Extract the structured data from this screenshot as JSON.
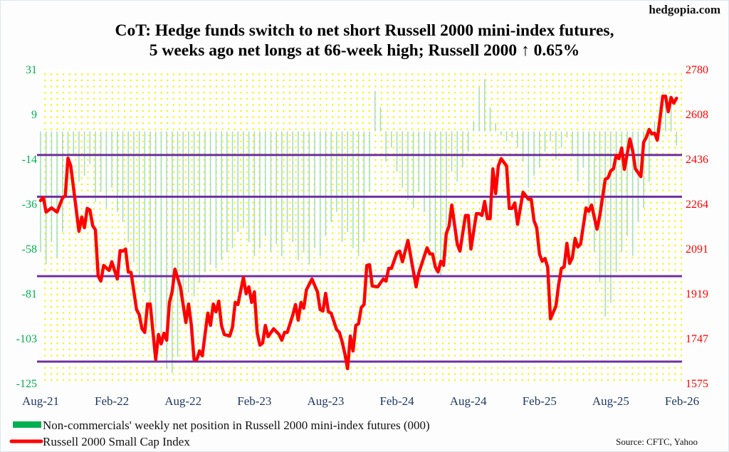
{
  "site": "hedgopia.com",
  "source": "Source: CFTC, Yahoo",
  "colors": {
    "bars": "#a6dfbd",
    "line": "#ff0000",
    "levels": "#7030a0",
    "left_axis": "#00b050",
    "right_axis": "#ff0000",
    "x_axis": "#1f3864"
  },
  "chart_data": {
    "type": "bar+line",
    "title": [
      "CoT: Hedge funds switch to net short Russell 2000 mini-index futures,",
      "5 weeks ago net longs at 66-week high; Russell 2000 ↑ 0.65%"
    ],
    "x_unit": "weeks since Aug-21",
    "xlim": [
      0,
      234
    ],
    "x_tick_labels": [
      "Aug-21",
      "Feb-22",
      "Aug-22",
      "Feb-23",
      "Aug-23",
      "Feb-24",
      "Aug-24",
      "Feb-25",
      "Aug-25",
      "Feb-26"
    ],
    "x_tick_weeks": [
      0,
      26,
      52,
      78,
      104,
      130,
      156,
      182,
      208,
      234
    ],
    "left_axis": {
      "ylim": [
        -125,
        31
      ],
      "tick_labels": [
        "31",
        "9",
        "-14",
        "-36",
        "-58",
        "-81",
        "-103",
        "-125"
      ]
    },
    "right_axis": {
      "ylim": [
        1575,
        2780
      ],
      "tick_labels": [
        "2780",
        "2608",
        "2436",
        "2264",
        "2091",
        "1919",
        "1747",
        "1575"
      ]
    },
    "legend": [
      "Non-commercials' weekly net position in Russell 2000 mini-index futures (000)",
      "Russell 2000 Small Cap Index"
    ],
    "legend_placement": "bottom-left",
    "horizontal_levels": [
      2450,
      2290,
      1985,
      1657
    ],
    "series": [
      {
        "name": "Non-commercials' weekly net position in Russell 2000 mini-index futures (000)",
        "axis": "left",
        "type": "bar",
        "week_step": 2,
        "values": [
          -60,
          -66,
          -55,
          -63,
          -50,
          -20,
          -12,
          -25,
          -22,
          -16,
          -35,
          -30,
          -38,
          -28,
          -40,
          -45,
          -55,
          -65,
          -72,
          -80,
          -88,
          -98,
          -105,
          -118,
          -120,
          -112,
          -85,
          -80,
          -82,
          -75,
          -70,
          -66,
          -68,
          -64,
          -60,
          -58,
          -50,
          -48,
          -55,
          -62,
          -58,
          -52,
          -60,
          -56,
          -62,
          -50,
          -55,
          -64,
          -60,
          -66,
          -58,
          -62,
          -52,
          -45,
          -40,
          -55,
          -50,
          -58,
          -62,
          -55,
          -30,
          20,
          12,
          -15,
          -8,
          -20,
          -28,
          -34,
          -38,
          -30,
          -40,
          -55,
          -70,
          -72,
          -62,
          -20,
          -25,
          -18,
          -10,
          5,
          22,
          26,
          12,
          4,
          -2,
          -5,
          -3,
          -8,
          -15,
          -28,
          -22,
          -18,
          -10,
          -5,
          -14,
          -8,
          -3,
          -12,
          -25,
          -18,
          -42,
          -60,
          -75,
          -92,
          -85,
          -70,
          -60,
          -52,
          -62,
          -45,
          -38,
          -25,
          5,
          12,
          18,
          15,
          -7
        ]
      },
      {
        "name": "Russell 2000 Small Cap Index",
        "axis": "right",
        "type": "line",
        "points": [
          [
            0,
            2275
          ],
          [
            1,
            2288
          ],
          [
            2,
            2231
          ],
          [
            4,
            2247
          ],
          [
            6,
            2231
          ],
          [
            8,
            2285
          ],
          [
            9,
            2294
          ],
          [
            10,
            2438
          ],
          [
            11,
            2408
          ],
          [
            14,
            2157
          ],
          [
            15,
            2212
          ],
          [
            16,
            2171
          ],
          [
            17,
            2245
          ],
          [
            18,
            2239
          ],
          [
            19,
            2179
          ],
          [
            20,
            2163
          ],
          [
            21,
            1985
          ],
          [
            22,
            1966
          ],
          [
            23,
            2026
          ],
          [
            25,
            2007
          ],
          [
            26,
            2040
          ],
          [
            28,
            1974
          ],
          [
            29,
            2083
          ],
          [
            30,
            2081
          ],
          [
            31,
            2089
          ],
          [
            32,
            2001
          ],
          [
            33,
            1999
          ],
          [
            35,
            1857
          ],
          [
            36,
            1837
          ],
          [
            37,
            1783
          ],
          [
            38,
            1769
          ],
          [
            39,
            1878
          ],
          [
            40,
            1878
          ],
          [
            42,
            1665
          ],
          [
            43,
            1761
          ],
          [
            44,
            1725
          ],
          [
            45,
            1766
          ],
          [
            46,
            1739
          ],
          [
            47,
            1884
          ],
          [
            48,
            1925
          ],
          [
            49,
            2012
          ],
          [
            51,
            1944
          ],
          [
            53,
            1807
          ],
          [
            54,
            1878
          ],
          [
            55,
            1796
          ],
          [
            56,
            1665
          ],
          [
            57,
            1665
          ],
          [
            58,
            1698
          ],
          [
            59,
            1679
          ],
          [
            60,
            1761
          ],
          [
            61,
            1843
          ],
          [
            62,
            1796
          ],
          [
            63,
            1878
          ],
          [
            64,
            1848
          ],
          [
            65,
            1889
          ],
          [
            66,
            1796
          ],
          [
            67,
            1761
          ],
          [
            69,
            1755
          ],
          [
            70,
            1788
          ],
          [
            71,
            1884
          ],
          [
            72,
            1876
          ],
          [
            74,
            1980
          ],
          [
            75,
            1917
          ],
          [
            76,
            1944
          ],
          [
            77,
            1884
          ],
          [
            78,
            1925
          ],
          [
            79,
            1769
          ],
          [
            80,
            1720
          ],
          [
            81,
            1728
          ],
          [
            82,
            1796
          ],
          [
            83,
            1753
          ],
          [
            85,
            1783
          ],
          [
            87,
            1761
          ],
          [
            88,
            1739
          ],
          [
            89,
            1769
          ],
          [
            90,
            1769
          ],
          [
            92,
            1835
          ],
          [
            93,
            1876
          ],
          [
            94,
            1816
          ],
          [
            95,
            1884
          ],
          [
            96,
            1862
          ],
          [
            97,
            1933
          ],
          [
            99,
            1974
          ],
          [
            101,
            1925
          ],
          [
            102,
            1857
          ],
          [
            103,
            1851
          ],
          [
            104,
            1919
          ],
          [
            105,
            1848
          ],
          [
            106,
            1843
          ],
          [
            108,
            1780
          ],
          [
            109,
            1769
          ],
          [
            110,
            1734
          ],
          [
            111,
            1687
          ],
          [
            112,
            1630
          ],
          [
            113,
            1755
          ],
          [
            114,
            1698
          ],
          [
            115,
            1796
          ],
          [
            116,
            1802
          ],
          [
            117,
            1865
          ],
          [
            118,
            1876
          ],
          [
            119,
            2026
          ],
          [
            120,
            2029
          ],
          [
            121,
            1947
          ],
          [
            123,
            1944
          ],
          [
            125,
            1974
          ],
          [
            126,
            1966
          ],
          [
            127,
            2015
          ],
          [
            128,
            2015
          ],
          [
            130,
            2075
          ],
          [
            131,
            2081
          ],
          [
            132,
            2040
          ],
          [
            134,
            2122
          ],
          [
            137,
            1944
          ],
          [
            138,
            1999
          ],
          [
            141,
            2094
          ],
          [
            142,
            2070
          ],
          [
            143,
            2070
          ],
          [
            144,
            2020
          ],
          [
            145,
            2001
          ],
          [
            146,
            2042
          ],
          [
            147,
            2026
          ],
          [
            148,
            2149
          ],
          [
            149,
            2176
          ],
          [
            150,
            2258
          ],
          [
            152,
            2108
          ],
          [
            153,
            2081
          ],
          [
            155,
            2218
          ],
          [
            156,
            2218
          ],
          [
            157,
            2089
          ],
          [
            159,
            2225
          ],
          [
            160,
            2225
          ],
          [
            161,
            2218
          ],
          [
            162,
            2272
          ],
          [
            163,
            2206
          ],
          [
            164,
            2206
          ],
          [
            165,
            2397
          ],
          [
            166,
            2302
          ],
          [
            167,
            2408
          ],
          [
            168,
            2436
          ],
          [
            170,
            2408
          ],
          [
            171,
            2245
          ],
          [
            172,
            2245
          ],
          [
            173,
            2266
          ],
          [
            174,
            2184
          ],
          [
            176,
            2307
          ],
          [
            178,
            2280
          ],
          [
            179,
            2280
          ],
          [
            180,
            2198
          ],
          [
            181,
            2171
          ],
          [
            182,
            2070
          ],
          [
            183,
            2042
          ],
          [
            184,
            2053
          ],
          [
            185,
            2020
          ],
          [
            186,
            1821
          ],
          [
            188,
            1870
          ],
          [
            189,
            1952
          ],
          [
            190,
            2015
          ],
          [
            191,
            2020
          ],
          [
            192,
            2111
          ],
          [
            193,
            2034
          ],
          [
            194,
            2056
          ],
          [
            195,
            2130
          ],
          [
            196,
            2097
          ],
          [
            197,
            2108
          ],
          [
            199,
            2247
          ],
          [
            200,
            2234
          ],
          [
            201,
            2258
          ],
          [
            203,
            2165
          ],
          [
            204,
            2217
          ],
          [
            206,
            2357
          ],
          [
            207,
            2362
          ],
          [
            208,
            2389
          ],
          [
            209,
            2397
          ],
          [
            210,
            2449
          ],
          [
            211,
            2436
          ],
          [
            212,
            2477
          ],
          [
            213,
            2395
          ],
          [
            215,
            2512
          ],
          [
            216,
            2466
          ],
          [
            217,
            2397
          ],
          [
            219,
            2367
          ],
          [
            220,
            2499
          ],
          [
            221,
            2518
          ],
          [
            222,
            2548
          ],
          [
            223,
            2531
          ],
          [
            224,
            2534
          ],
          [
            225,
            2507
          ],
          [
            227,
            2676
          ],
          [
            228,
            2676
          ],
          [
            229,
            2616
          ],
          [
            230,
            2671
          ],
          [
            231,
            2649
          ],
          [
            232,
            2668
          ]
        ]
      }
    ]
  }
}
